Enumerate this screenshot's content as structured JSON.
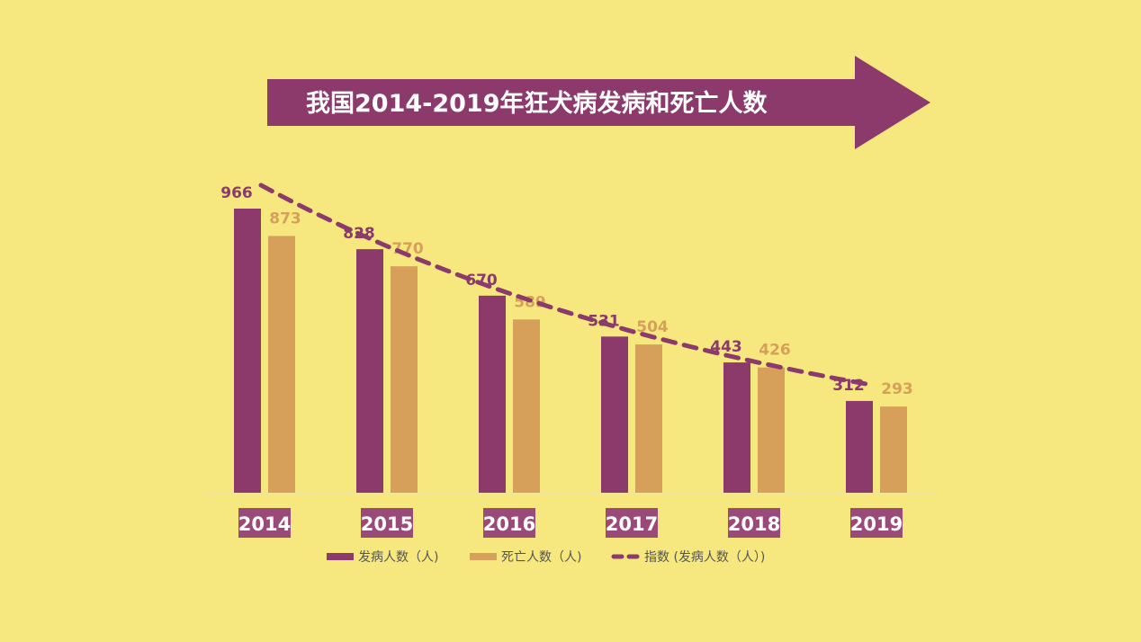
{
  "colors": {
    "background": "#f6e87e",
    "primary": "#8b3a6b",
    "secondary": "#d7a05a",
    "year_box": "#9a4a78",
    "axis": "#efe3a0"
  },
  "chart_data": {
    "type": "bar",
    "title": "我国2014-2019年狂犬病发病和死亡人数",
    "categories": [
      "2014",
      "2015",
      "2016",
      "2017",
      "2018",
      "2019"
    ],
    "series": [
      {
        "name": "发病人数（人)",
        "values": [
          966,
          828,
          670,
          531,
          443,
          312
        ],
        "color": "#8b3a6b"
      },
      {
        "name": "死亡人数（人)",
        "values": [
          873,
          770,
          589,
          504,
          426,
          293
        ],
        "color": "#d7a05a"
      }
    ],
    "trendline": {
      "name": "指数 (发病人数（人）)",
      "type": "exponential",
      "of_series": 0,
      "style": "dashed",
      "color": "#8b3a6b"
    },
    "data_labels": true,
    "grid": false,
    "yaxis_visible": false,
    "legend": "bottom"
  }
}
